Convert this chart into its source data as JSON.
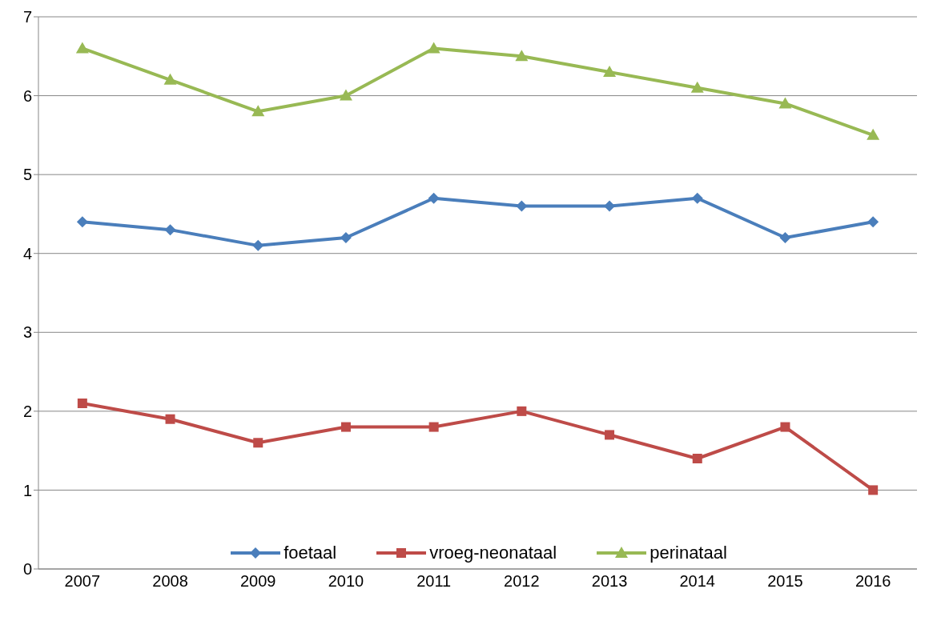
{
  "chart_data": {
    "type": "line",
    "categories": [
      "2007",
      "2008",
      "2009",
      "2010",
      "2011",
      "2012",
      "2013",
      "2014",
      "2015",
      "2016"
    ],
    "series": [
      {
        "name": "foetaal",
        "color": "#4a7ebb",
        "marker": "diamond",
        "values": [
          4.4,
          4.3,
          4.1,
          4.2,
          4.7,
          4.6,
          4.6,
          4.7,
          4.2,
          4.4
        ]
      },
      {
        "name": "vroeg-neonataal",
        "color": "#be4b48",
        "marker": "square",
        "values": [
          2.1,
          1.9,
          1.6,
          1.8,
          1.8,
          2.0,
          1.7,
          1.4,
          1.8,
          1.0
        ]
      },
      {
        "name": "perinataal",
        "color": "#98b954",
        "marker": "triangle",
        "values": [
          6.6,
          6.2,
          5.8,
          6.0,
          6.6,
          6.5,
          6.3,
          6.1,
          5.9,
          5.5
        ]
      }
    ],
    "ylim": [
      0,
      7
    ],
    "yticks": [
      0,
      1,
      2,
      3,
      4,
      5,
      6,
      7
    ],
    "grid": "y",
    "legend": "bottom",
    "line_style": "solid"
  }
}
